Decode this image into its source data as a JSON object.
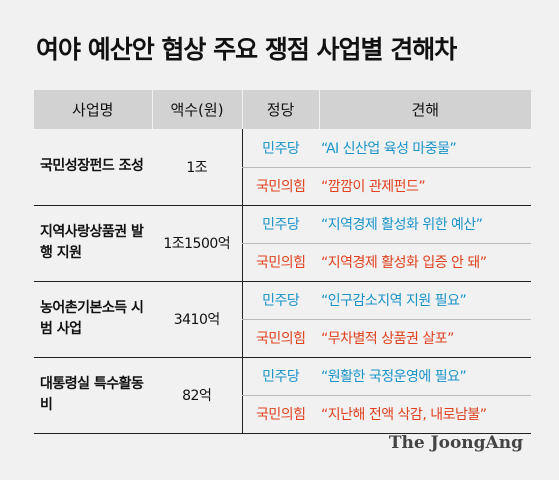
{
  "title": "여야 예산안 협상 주요 쟁점 사업별 견해차",
  "headers": [
    "사업명",
    "액수(원)",
    "정당",
    "견해"
  ],
  "colors": {
    "democratic": "#1a94c9",
    "people_power": "#e0421f"
  },
  "rows": [
    {
      "project": "국민성장펀드 조성",
      "amount": "1조",
      "dem_party": "민주당",
      "dem_view": "“AI 신산업 육성 마중물”",
      "ppp_party": "국민의힘",
      "ppp_view": "“깜깜이 관제펀드”"
    },
    {
      "project": "지역사랑상품권 발행 지원",
      "amount": "1조1500억",
      "dem_party": "민주당",
      "dem_view": "“지역경제 활성화 위한 예산”",
      "ppp_party": "국민의힘",
      "ppp_view": "“지역경제 활성화 입증 안 돼”"
    },
    {
      "project": "농어촌기본소득 시범 사업",
      "amount": "3410억",
      "dem_party": "민주당",
      "dem_view": "“인구감소지역 지원 필요”",
      "ppp_party": "국민의힘",
      "ppp_view": "“무차별적 상품권 살포”"
    },
    {
      "project": "대통령실 특수활동비",
      "amount": "82억",
      "dem_party": "민주당",
      "dem_view": "“원활한 국정운영에 필요”",
      "ppp_party": "국민의힘",
      "ppp_view": "“지난해 전액 삭감, 내로남불”"
    }
  ],
  "logo": "The JoongAng"
}
